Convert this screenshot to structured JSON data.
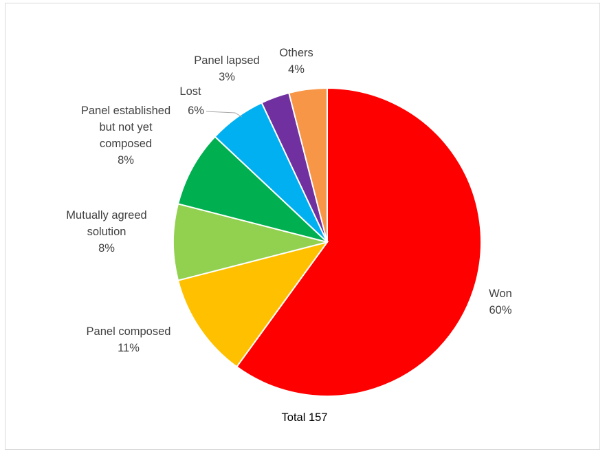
{
  "chart_data": {
    "type": "pie",
    "total_label": "Total 157",
    "slices": [
      {
        "name": "Won",
        "value": 60,
        "label_lines": [
          "Won",
          "60%"
        ],
        "color": "#ff0000"
      },
      {
        "name": "Panel composed",
        "value": 11,
        "label_lines": [
          "Panel composed",
          "11%"
        ],
        "color": "#ffc000"
      },
      {
        "name": "Mutually agreed solution",
        "value": 8,
        "label_lines": [
          "Mutually agreed",
          "solution",
          "8%"
        ],
        "color": "#92d050"
      },
      {
        "name": "Panel established but not yet composed",
        "value": 8,
        "label_lines": [
          "Panel established",
          "but not yet",
          "composed",
          "8%"
        ],
        "color": "#00b050"
      },
      {
        "name": "Lost",
        "value": 6,
        "label_lines": [
          "Lost",
          "6%"
        ],
        "color": "#00b0f0"
      },
      {
        "name": "Panel lapsed",
        "value": 3,
        "label_lines": [
          "Panel lapsed",
          "3%"
        ],
        "color": "#7030a0"
      },
      {
        "name": "Others",
        "value": 4,
        "label_lines": [
          "Others",
          "4%"
        ],
        "color": "#f79646"
      }
    ]
  }
}
